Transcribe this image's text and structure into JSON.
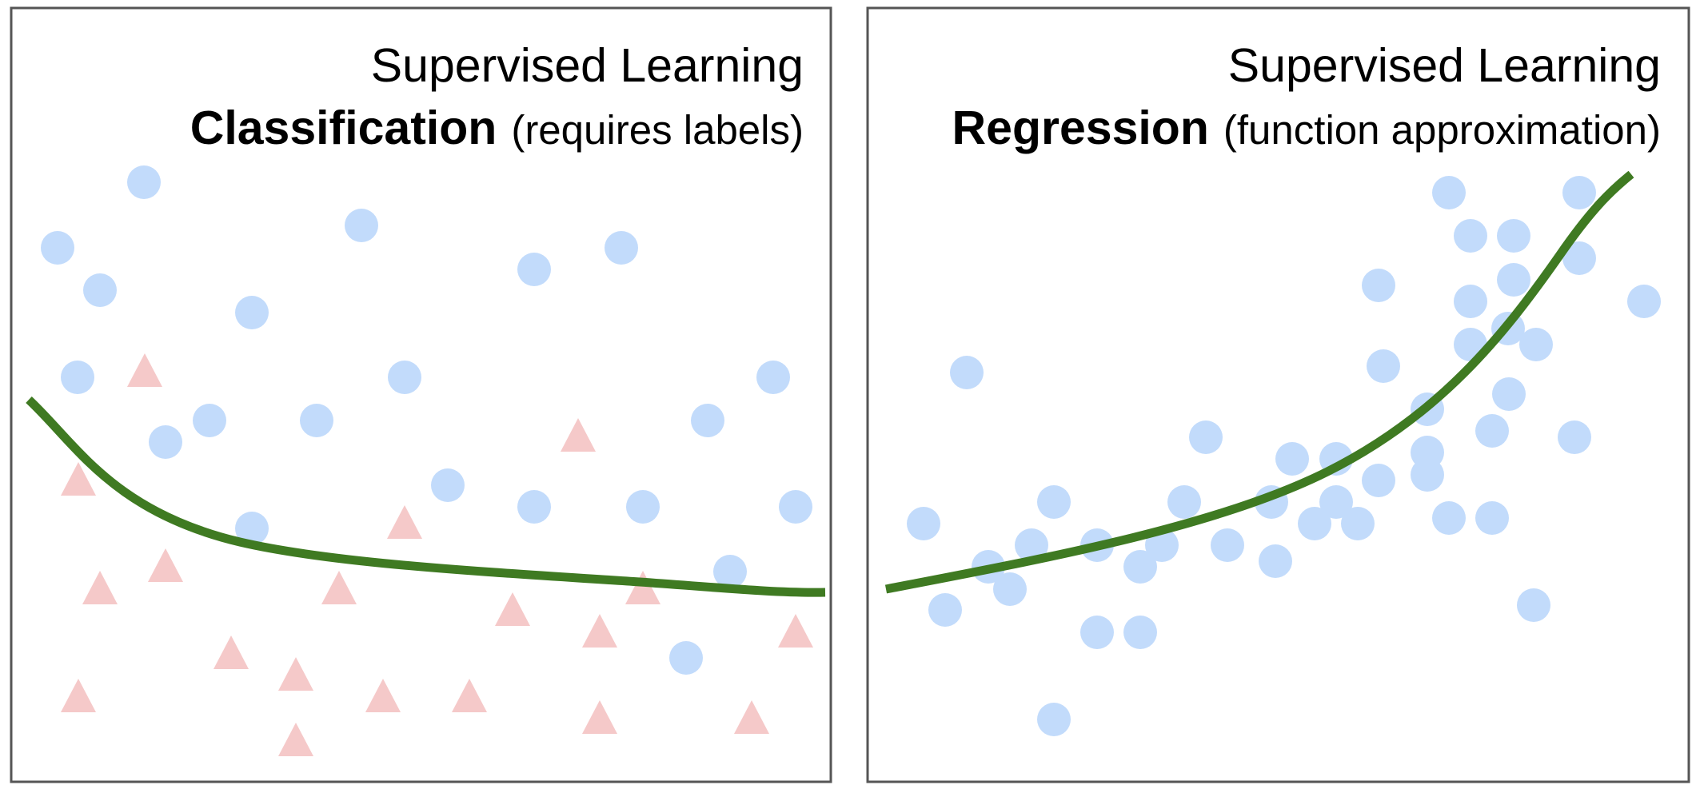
{
  "colors": {
    "frame": "#555555",
    "circle": "#c2dbfb",
    "triangle": "#f5c9c9",
    "curve": "#3f7a22"
  },
  "panels": [
    {
      "title": "Supervised Learning",
      "subtitle_bold": "Classification",
      "subtitle_paren": "(requires labels)"
    },
    {
      "title": "Supervised Learning",
      "subtitle_bold": "Regression",
      "subtitle_paren": "(function approximation)"
    }
  ]
}
